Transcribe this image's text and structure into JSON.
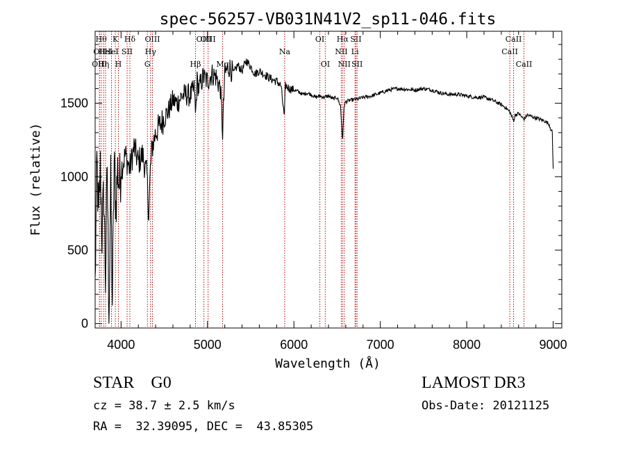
{
  "chart_data": {
    "type": "line",
    "title": "spec-56257-VB031N41V2_sp11-046.fits",
    "xlabel": "Wavelength (Å)",
    "ylabel": "Flux (relative)",
    "xlim": [
      3700,
      9100
    ],
    "ylim": [
      -30,
      1990
    ],
    "x_ticks": [
      4000,
      5000,
      6000,
      7000,
      8000,
      9000
    ],
    "y_ticks": [
      0,
      500,
      1000,
      1500
    ],
    "grid": false,
    "series": [
      {
        "color": "#000000",
        "x": [
          3700,
          3720,
          3740,
          3760,
          3780,
          3800,
          3820,
          3840,
          3860,
          3880,
          3900,
          3920,
          3940,
          3960,
          3980,
          4000,
          4050,
          4100,
          4150,
          4200,
          4250,
          4300,
          4320,
          4340,
          4360,
          4400,
          4450,
          4500,
          4550,
          4600,
          4650,
          4700,
          4750,
          4800,
          4850,
          4861,
          4880,
          4900,
          4950,
          5000,
          5050,
          5100,
          5150,
          5175,
          5200,
          5250,
          5300,
          5350,
          5400,
          5450,
          5500,
          5550,
          5600,
          5650,
          5700,
          5750,
          5800,
          5850,
          5890,
          5900,
          5950,
          6000,
          6050,
          6100,
          6150,
          6200,
          6250,
          6300,
          6350,
          6400,
          6450,
          6500,
          6540,
          6563,
          6580,
          6600,
          6650,
          6700,
          6750,
          6800,
          6900,
          7000,
          7100,
          7200,
          7300,
          7400,
          7500,
          7600,
          7700,
          7800,
          7900,
          8000,
          8100,
          8200,
          8300,
          8400,
          8450,
          8500,
          8542,
          8560,
          8600,
          8662,
          8700,
          8750,
          8800,
          8850,
          8900,
          8950,
          8990,
          9000
        ],
        "values": [
          250,
          1100,
          700,
          1050,
          600,
          900,
          300,
          1100,
          0,
          950,
          150,
          1100,
          800,
          1050,
          950,
          1050,
          1150,
          1050,
          1200,
          1100,
          1150,
          1000,
          750,
          1050,
          1200,
          1300,
          1350,
          1400,
          1450,
          1520,
          1500,
          1550,
          1560,
          1550,
          1600,
          1400,
          1650,
          1600,
          1680,
          1650,
          1700,
          1680,
          1600,
          1300,
          1700,
          1750,
          1700,
          1760,
          1720,
          1790,
          1750,
          1700,
          1720,
          1700,
          1680,
          1660,
          1650,
          1620,
          1400,
          1620,
          1600,
          1590,
          1580,
          1560,
          1570,
          1560,
          1540,
          1550,
          1540,
          1550,
          1530,
          1540,
          1480,
          1240,
          1480,
          1510,
          1520,
          1525,
          1530,
          1540,
          1550,
          1570,
          1590,
          1600,
          1595,
          1590,
          1600,
          1590,
          1570,
          1560,
          1560,
          1550,
          1540,
          1540,
          1520,
          1490,
          1470,
          1440,
          1380,
          1420,
          1430,
          1390,
          1420,
          1410,
          1400,
          1390,
          1380,
          1360,
          1300,
          1050
        ]
      }
    ],
    "lines": [
      {
        "x": 3750,
        "label": "OII",
        "row": 1
      },
      {
        "x": 3750,
        "label": "OIII",
        "row": 2
      },
      {
        "x": 3770,
        "label": "Hθ",
        "row": 0
      },
      {
        "x": 3798,
        "label": "Hη",
        "row": 2
      },
      {
        "x": 3820,
        "label": "HeI",
        "row": 1
      },
      {
        "x": 3889,
        "label": "HeI",
        "row": 1
      },
      {
        "x": 3934,
        "label": "K",
        "row": 0
      },
      {
        "x": 3969,
        "label": "H",
        "row": 2
      },
      {
        "x": 4070,
        "label": "SII",
        "row": 1
      },
      {
        "x": 4102,
        "label": "Hδ",
        "row": 0
      },
      {
        "x": 4305,
        "label": "G",
        "row": 2
      },
      {
        "x": 4341,
        "label": "Hγ",
        "row": 1
      },
      {
        "x": 4363,
        "label": "OIII",
        "row": 0
      },
      {
        "x": 4861,
        "label": "Hβ",
        "row": 2
      },
      {
        "x": 4959,
        "label": "OIII",
        "row": 0
      },
      {
        "x": 5007,
        "label": "OIII",
        "row": 0
      },
      {
        "x": 5175,
        "label": "Mg",
        "row": 2
      },
      {
        "x": 5893,
        "label": "Na",
        "row": 1
      },
      {
        "x": 6300,
        "label": "OI",
        "row": 0
      },
      {
        "x": 6363,
        "label": "OI",
        "row": 2
      },
      {
        "x": 6548,
        "label": "NII",
        "row": 1
      },
      {
        "x": 6563,
        "label": "Hα",
        "row": 0
      },
      {
        "x": 6583,
        "label": "NII",
        "row": 2
      },
      {
        "x": 6707,
        "label": "Li",
        "row": 1
      },
      {
        "x": 6717,
        "label": "SII",
        "row": 0
      },
      {
        "x": 6731,
        "label": "SII",
        "row": 2
      },
      {
        "x": 8498,
        "label": "CaII",
        "row": 1
      },
      {
        "x": 8542,
        "label": "CaII",
        "row": 0
      },
      {
        "x": 8662,
        "label": "CaII",
        "row": 2
      }
    ]
  },
  "info": {
    "class_line": "STAR    G0",
    "catalog": "LAMOST DR3",
    "redshift": "cz = 38.7 ± 2.5 km/s",
    "obs_date": "Obs-Date: 20121125",
    "coords": "RA =  32.39095, DEC =  43.85305"
  }
}
